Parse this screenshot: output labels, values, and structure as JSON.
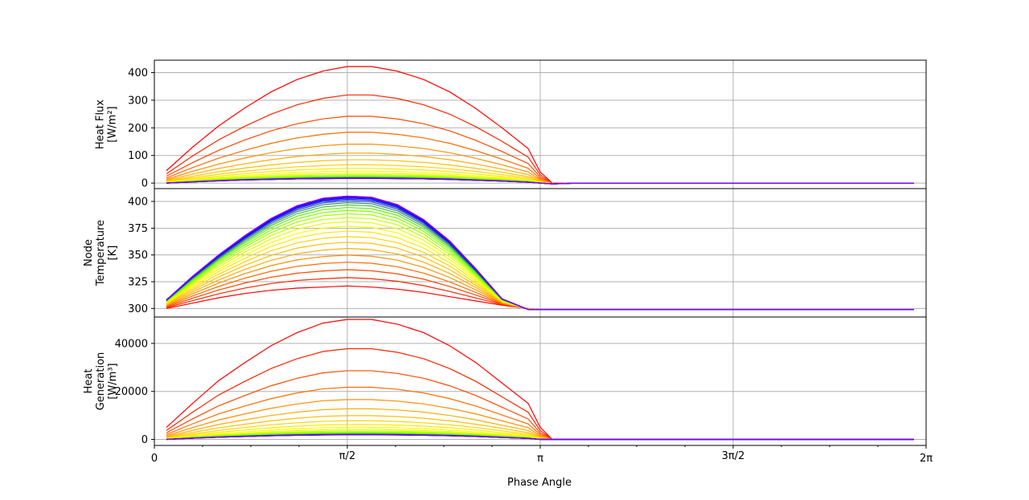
{
  "chart_data": [
    {
      "type": "line",
      "panel": "top",
      "ylabel_lines": [
        "Heat Flux",
        "[W/m²]"
      ],
      "xlim": [
        0,
        6.283185307
      ],
      "ylim": [
        -20,
        445
      ],
      "yticks": [
        0,
        100,
        200,
        300,
        400
      ],
      "grid": true,
      "series_count": 24,
      "series_style": "family of curves colored red (top curve) through orange, yellow, green, blue to violet (bottom curve)",
      "x": [
        0.0982,
        0.3109,
        0.5236,
        0.7363,
        0.949,
        1.1617,
        1.3744,
        1.5708,
        1.7672,
        1.9799,
        2.1926,
        2.4053,
        2.618,
        2.8307,
        3.0434,
        3.1416,
        3.2398,
        3.4525,
        6.1836
      ],
      "envelope": [
        {
          "name": "max-curve",
          "values": [
            45,
            130,
            207,
            272,
            330,
            375,
            406,
            422,
            422,
            405,
            375,
            330,
            270,
            200,
            125,
            40,
            0,
            0,
            0
          ]
        },
        {
          "name": "min-curve",
          "values": [
            0,
            4,
            8,
            11,
            13,
            15,
            16,
            17,
            17,
            16,
            15,
            13,
            10,
            7,
            3,
            0,
            -3,
            0,
            0
          ]
        }
      ]
    },
    {
      "type": "line",
      "panel": "middle",
      "ylabel_lines": [
        "Node",
        "Temperature",
        "[K]"
      ],
      "xlim": [
        0,
        6.283185307
      ],
      "ylim": [
        292,
        412
      ],
      "yticks": [
        300,
        325,
        350,
        375,
        400
      ],
      "grid": true,
      "series_count": 24,
      "series_style": "family of curves colored red (bottom curve) through orange, yellow, green, blue to violet (top curve)",
      "x": [
        0.0982,
        0.3109,
        0.5236,
        0.7363,
        0.949,
        1.1617,
        1.3744,
        1.5708,
        1.7672,
        1.9799,
        2.1926,
        2.4053,
        2.618,
        2.8307,
        3.0434,
        3.1416,
        3.2398,
        3.4525,
        6.1836
      ],
      "envelope": [
        {
          "name": "min-curve",
          "values": [
            300,
            305,
            310,
            314,
            317,
            319,
            320,
            321,
            320,
            318,
            315,
            311,
            307,
            303,
            300,
            299,
            299,
            299,
            299
          ]
        },
        {
          "name": "max-curve",
          "values": [
            308,
            330,
            350,
            368,
            384,
            396,
            403,
            405,
            404,
            397,
            383,
            363,
            337,
            309,
            299,
            299,
            299,
            299,
            299
          ]
        }
      ]
    },
    {
      "type": "line",
      "panel": "bottom",
      "ylabel_lines": [
        "Heat",
        "Generation",
        "[W/m³]"
      ],
      "xlim": [
        0,
        6.283185307
      ],
      "ylim": [
        -2500,
        51000
      ],
      "yticks": [
        0,
        20000,
        40000
      ],
      "grid": true,
      "series_count": 24,
      "series_style": "family of curves colored red (top curve) through orange, yellow, green, blue to violet (bottom curve)",
      "x": [
        0.0982,
        0.3109,
        0.5236,
        0.7363,
        0.949,
        1.1617,
        1.3744,
        1.5708,
        1.7672,
        1.9799,
        2.1926,
        2.4053,
        2.618,
        2.8307,
        3.0434,
        3.1416,
        3.2398,
        3.4525,
        6.1836
      ],
      "envelope": [
        {
          "name": "max-curve",
          "values": [
            5000,
            15000,
            24500,
            32000,
            39000,
            44500,
            48500,
            50000,
            50000,
            48000,
            44500,
            39000,
            32000,
            23500,
            15000,
            5000,
            0,
            0,
            0
          ]
        },
        {
          "name": "min-curve",
          "values": [
            0,
            500,
            900,
            1200,
            1500,
            1700,
            1850,
            1900,
            1900,
            1850,
            1700,
            1500,
            1200,
            800,
            400,
            0,
            0,
            0,
            0
          ]
        }
      ]
    }
  ],
  "x_axis": {
    "label": "Phase Angle",
    "tick_values": [
      0,
      1.570796327,
      3.141592654,
      4.71238898,
      6.283185307
    ],
    "tick_labels": [
      "0",
      "π/2",
      "π",
      "3π/2",
      "2π"
    ]
  },
  "colors": {
    "gradient_start": "#ff0000",
    "gradient_mid": "#ffa500",
    "gradient_green": "#66ff00",
    "gradient_blue": "#0000ff",
    "gradient_end": "#8000ff",
    "grid": "#b0b0b0",
    "axis": "#000000"
  }
}
